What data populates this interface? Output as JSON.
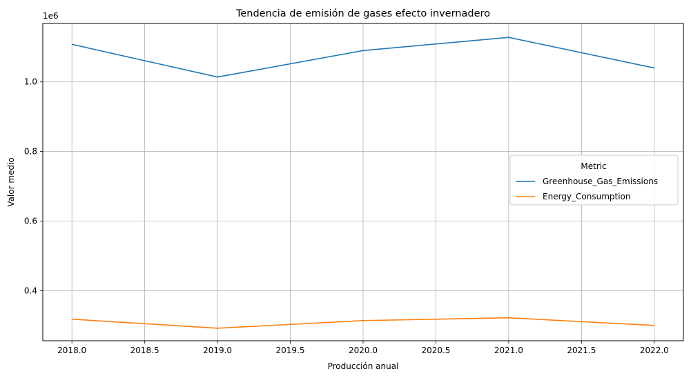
{
  "chart_data": {
    "type": "line",
    "title": "Tendencia de emisión de gases efecto invernadero",
    "xlabel": "Producción anual",
    "ylabel": "Valor medio",
    "y_offset_text": "1e6",
    "xlim": [
      2017.8,
      2022.2
    ],
    "ylim": [
      0.256,
      1.168
    ],
    "x_ticks": [
      2018.0,
      2018.5,
      2019.0,
      2019.5,
      2020.0,
      2020.5,
      2021.0,
      2021.5,
      2022.0
    ],
    "x_tick_labels": [
      "2018.0",
      "2018.5",
      "2019.0",
      "2019.5",
      "2020.0",
      "2020.5",
      "2021.0",
      "2021.5",
      "2022.0"
    ],
    "y_ticks": [
      0.4,
      0.6,
      0.8,
      1.0
    ],
    "y_tick_labels": [
      "0.4",
      "0.6",
      "0.8",
      "1.0"
    ],
    "grid": true,
    "legend": {
      "title": "Metric",
      "placement": "center-right"
    },
    "x": [
      2018,
      2019,
      2020,
      2021,
      2022
    ],
    "series": [
      {
        "name": "Greenhouse_Gas_Emissions",
        "color": "#1f77b4",
        "values": [
          1.108,
          1.014,
          1.09,
          1.128,
          1.04
        ]
      },
      {
        "name": "Energy_Consumption",
        "color": "#ff7f0e",
        "values": [
          0.318,
          0.292,
          0.314,
          0.322,
          0.3
        ]
      }
    ]
  }
}
